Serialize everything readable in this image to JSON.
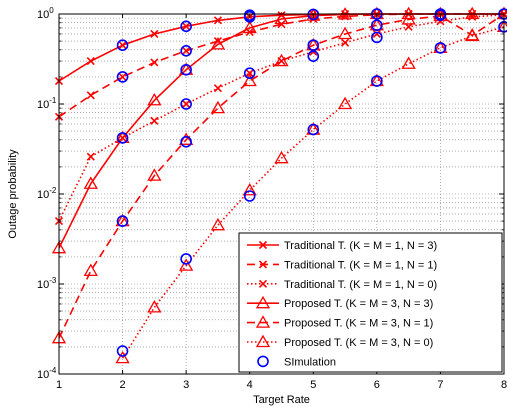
{
  "chart_data": {
    "type": "line",
    "title": "",
    "xlabel": "Target Rate",
    "ylabel": "Outage probability",
    "xlim": [
      1,
      8
    ],
    "ylim": [
      0.0001,
      1
    ],
    "yscale": "log",
    "grid": true,
    "legend_position": "bottom-right",
    "x_ticks": [
      "1",
      "2",
      "3",
      "4",
      "5",
      "6",
      "7",
      "8"
    ],
    "y_ticks": [
      {
        "value": 0.0001,
        "base": "10",
        "exp": "-4"
      },
      {
        "value": 0.001,
        "base": "10",
        "exp": "-3"
      },
      {
        "value": 0.01,
        "base": "10",
        "exp": "-2"
      },
      {
        "value": 0.1,
        "base": "10",
        "exp": "-1"
      },
      {
        "value": 1,
        "base": "10",
        "exp": "0"
      }
    ],
    "series": [
      {
        "name": "Traditional T. (K = M = 1, N = 3)",
        "style": "solid",
        "marker": "x",
        "color": "#ff0000",
        "x": [
          1,
          1.5,
          2,
          2.5,
          3,
          3.5,
          4,
          4.5,
          5,
          5.5,
          6,
          6.5,
          7,
          7.5,
          8
        ],
        "y": [
          0.18,
          0.3,
          0.45,
          0.6,
          0.73,
          0.85,
          0.93,
          0.97,
          0.99,
          1,
          1,
          1,
          1,
          1,
          1
        ]
      },
      {
        "name": "Traditional T. (K = M = 1, N = 1)",
        "style": "dashed",
        "marker": "x",
        "color": "#ff0000",
        "x": [
          1,
          1.5,
          2,
          2.5,
          3,
          3.5,
          4,
          4.5,
          5,
          5.5,
          6,
          6.5,
          7,
          7.5,
          8
        ],
        "y": [
          0.072,
          0.125,
          0.2,
          0.29,
          0.39,
          0.5,
          0.63,
          0.77,
          0.88,
          0.94,
          0.98,
          1,
          1,
          1,
          1
        ]
      },
      {
        "name": "Traditional T. (K = M = 1, N = 0)",
        "style": "dotted",
        "marker": "x",
        "color": "#ff0000",
        "x": [
          1,
          1.5,
          2,
          2.5,
          3,
          3.5,
          4,
          4.5,
          5,
          5.5,
          6,
          6.5,
          7,
          7.5,
          8
        ],
        "y": [
          0.005,
          0.026,
          0.042,
          0.065,
          0.1,
          0.15,
          0.22,
          0.3,
          0.38,
          0.48,
          0.6,
          0.72,
          0.83,
          0.93,
          0.98
        ]
      },
      {
        "name": "Proposed T. (K = M = 3, N = 3)",
        "style": "solid",
        "marker": "triangle",
        "color": "#ff0000",
        "x": [
          1,
          1.5,
          2,
          2.5,
          3,
          3.5,
          4,
          4.5,
          5,
          5.5,
          6,
          6.5,
          7,
          7.5,
          8
        ],
        "y": [
          0.0025,
          0.013,
          0.042,
          0.11,
          0.24,
          0.46,
          0.7,
          0.88,
          0.96,
          0.99,
          1,
          1,
          1,
          1,
          1
        ]
      },
      {
        "name": "Proposed T. (K = M = 3, N = 1)",
        "style": "dashed",
        "marker": "triangle",
        "color": "#ff0000",
        "x": [
          1,
          1.5,
          2,
          2.5,
          3,
          3.5,
          4,
          4.5,
          5,
          5.5,
          6,
          6.5,
          7,
          7.5,
          8
        ],
        "y": [
          0.00025,
          0.0014,
          0.005,
          0.016,
          0.04,
          0.09,
          0.18,
          0.3,
          0.45,
          0.6,
          0.75,
          0.87,
          0.95,
          0.58,
          1
        ]
      },
      {
        "name": "Proposed T. (K = M = 3, N = 0)",
        "style": "dotted",
        "marker": "triangle",
        "color": "#ff0000",
        "x": [
          2,
          2.5,
          3,
          3.5,
          4,
          4.5,
          5,
          5.5,
          6,
          6.5,
          7,
          7.5,
          8
        ],
        "y": [
          0.00015,
          0.00055,
          0.0016,
          0.0045,
          0.011,
          0.025,
          0.052,
          0.1,
          0.18,
          0.28,
          0.42,
          0.57,
          0.72
        ]
      },
      {
        "name": "SImulation",
        "style": "none",
        "marker": "circle",
        "color": "#0000ff",
        "x": [
          2,
          2,
          2,
          2,
          2,
          3,
          3,
          3,
          3,
          3,
          3,
          4,
          4,
          4,
          4,
          5,
          5,
          5,
          5,
          6,
          6,
          6,
          6,
          7,
          7,
          7,
          8,
          8
        ],
        "y": [
          0.45,
          0.2,
          0.042,
          0.005,
          0.00018,
          0.73,
          0.39,
          0.24,
          0.1,
          0.038,
          0.0019,
          0.93,
          0.97,
          0.22,
          0.0095,
          0.99,
          0.45,
          0.34,
          0.052,
          1,
          0.75,
          0.55,
          0.18,
          1,
          0.97,
          0.42,
          1,
          0.72
        ]
      }
    ]
  }
}
